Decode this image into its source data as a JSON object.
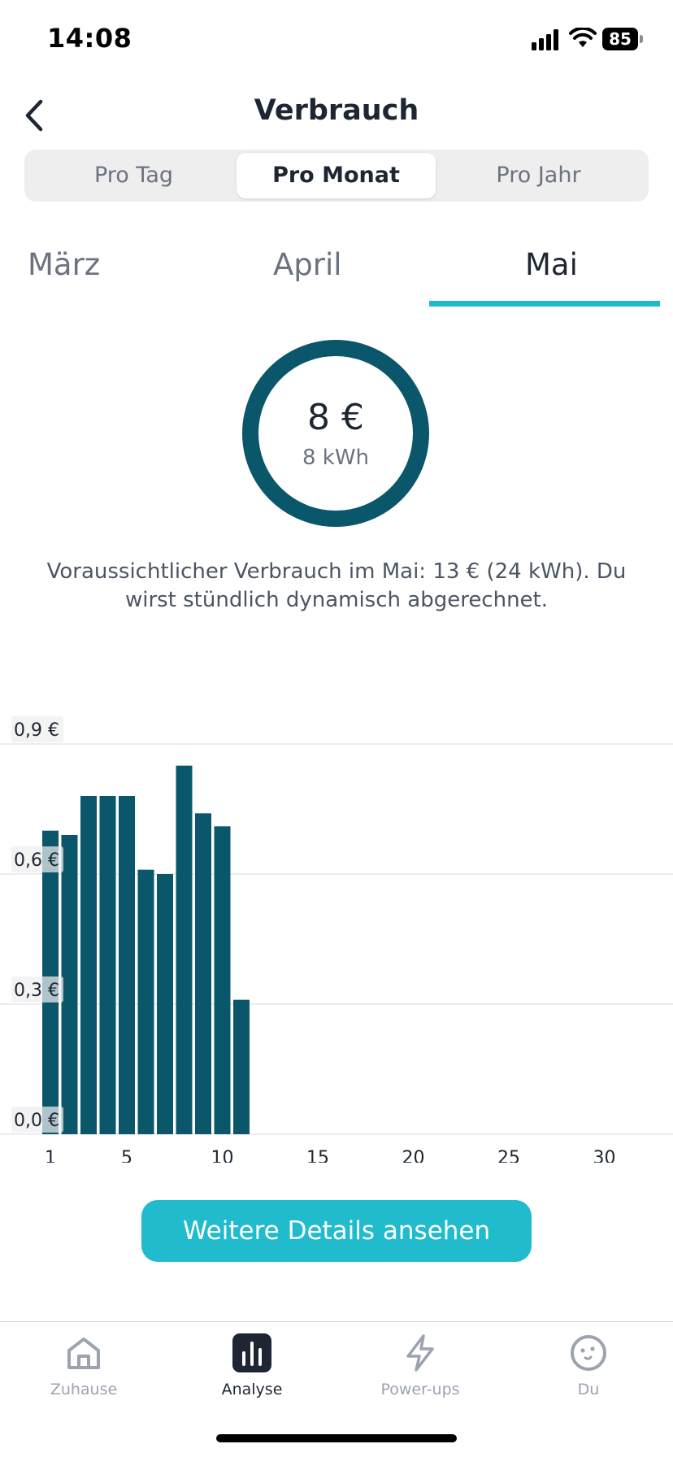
{
  "status_bar": {
    "time": "14:08",
    "battery": "85"
  },
  "header": {
    "title": "Verbrauch"
  },
  "segments": {
    "day": "Pro Tag",
    "month": "Pro Monat",
    "year": "Pro Jahr",
    "selected": "month"
  },
  "months": {
    "march": "März",
    "april": "April",
    "may": "Mai",
    "selected": "may"
  },
  "summary": {
    "amount": "8 €",
    "energy": "8 kWh"
  },
  "forecast": "Voraussichtlicher Verbrauch im Mai: 13 € (24 kWh). Du wirst stündlich dynamisch abgerechnet.",
  "chart_data": {
    "type": "bar",
    "title": "",
    "xlabel": "",
    "ylabel": "",
    "x": [
      1,
      2,
      3,
      4,
      5,
      6,
      7,
      8,
      9,
      10,
      11
    ],
    "values": [
      0.7,
      0.69,
      0.78,
      0.78,
      0.78,
      0.61,
      0.6,
      0.85,
      0.74,
      0.71,
      0.31
    ],
    "xlim": [
      1,
      31
    ],
    "x_ticks": [
      "1",
      "5",
      "10",
      "15",
      "20",
      "25",
      "30"
    ],
    "x_tick_values": [
      1,
      5,
      10,
      15,
      20,
      25,
      30
    ],
    "ylim": [
      0,
      0.9
    ],
    "y_ticks": [
      "0,0 €",
      "0,3 €",
      "0,6 €",
      "0,9 €"
    ],
    "y_tick_values": [
      0,
      0.3,
      0.6,
      0.9
    ],
    "grid": true,
    "bar_color": "#0a566b"
  },
  "cta": {
    "label": "Weitere Details ansehen"
  },
  "nav": {
    "home": "Zuhause",
    "analysis": "Analyse",
    "powerups": "Power-ups",
    "you": "Du",
    "selected": "analysis"
  },
  "colors": {
    "accent": "#20bbcd",
    "primary_dark": "#0a566b",
    "text": "#1e2633"
  }
}
